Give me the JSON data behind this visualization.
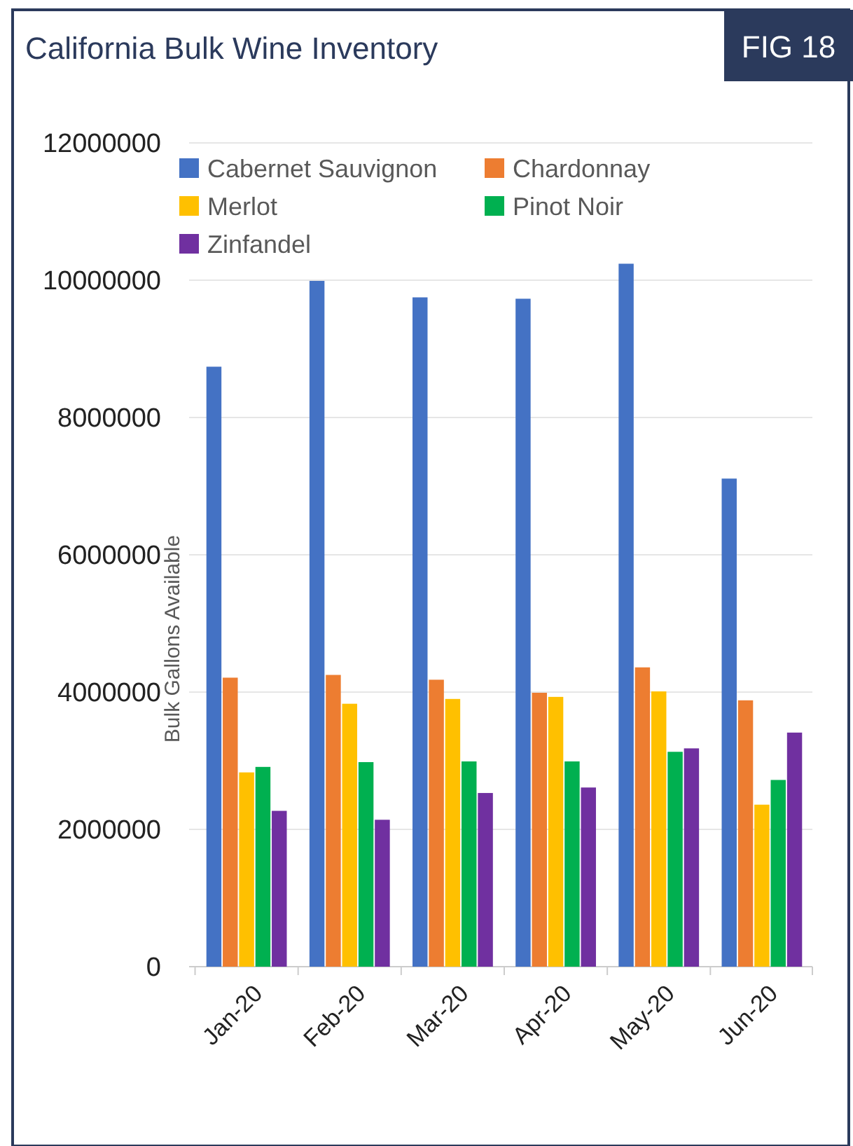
{
  "chart_data": {
    "type": "bar",
    "title": "California Bulk Wine Inventory",
    "annotations": [
      "FIG 18"
    ],
    "ylabel": "Bulk Gallons Available",
    "categories": [
      "Jan-20",
      "Feb-20",
      "Mar-20",
      "Apr-20",
      "May-20",
      "Jun-20"
    ],
    "series": [
      {
        "name": "Cabernet Sauvignon",
        "color": "#4472c4",
        "values": [
          8740000,
          9990000,
          9750000,
          9730000,
          10240000,
          7110000
        ]
      },
      {
        "name": "Chardonnay",
        "color": "#ed7d31",
        "values": [
          4210000,
          4250000,
          4180000,
          3990000,
          4360000,
          3880000
        ]
      },
      {
        "name": "Merlot",
        "color": "#ffc000",
        "values": [
          2830000,
          3830000,
          3900000,
          3930000,
          4010000,
          2360000
        ]
      },
      {
        "name": "Pinot Noir",
        "color": "#00b050",
        "values": [
          2910000,
          2980000,
          2990000,
          2990000,
          3130000,
          2720000
        ]
      },
      {
        "name": "Zinfandel",
        "color": "#7030a0",
        "values": [
          2270000,
          2140000,
          2530000,
          2610000,
          3180000,
          3410000
        ]
      }
    ],
    "ylim": [
      0,
      12000000
    ],
    "yticks": [
      0,
      2000000,
      4000000,
      6000000,
      8000000,
      10000000,
      12000000
    ],
    "grid": "y",
    "legend": "top"
  }
}
